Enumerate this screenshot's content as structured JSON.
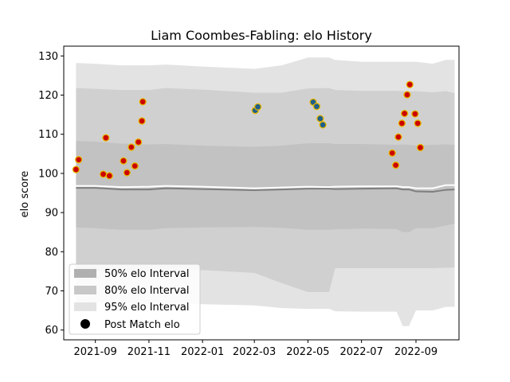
{
  "chart_data": {
    "type": "scatter",
    "title": "Liam Coombes-Fabling: elo History",
    "xlabel": "",
    "ylabel": "elo score",
    "xlim": [
      "2021-07-27",
      "2022-10-20"
    ],
    "ylim": [
      57.5,
      132.5
    ],
    "x_ticks": [
      "2021-09",
      "2021-11",
      "2022-01",
      "2022-03",
      "2022-05",
      "2022-07",
      "2022-09"
    ],
    "x_tick_dates": [
      "2021-09-01",
      "2021-11-01",
      "2022-01-01",
      "2022-03-01",
      "2022-05-01",
      "2022-07-01",
      "2022-09-01"
    ],
    "y_ticks": [
      60,
      70,
      80,
      90,
      100,
      110,
      120,
      130
    ],
    "grid": false,
    "legend_position": "lower left",
    "legend": [
      {
        "label": "50% elo Interval",
        "color": "#b0b0b0"
      },
      {
        "label": "80% elo Interval",
        "color": "#c8c8c8"
      },
      {
        "label": "95% elo Interval",
        "color": "#e3e3e3"
      },
      {
        "label": "Post Match elo",
        "color": "#000000"
      }
    ],
    "bands": {
      "dates": [
        "2021-08-10",
        "2021-09-01",
        "2021-10-01",
        "2021-11-01",
        "2021-11-20",
        "2022-01-01",
        "2022-03-01",
        "2022-04-01",
        "2022-05-01",
        "2022-05-25",
        "2022-06-01",
        "2022-07-01",
        "2022-08-10",
        "2022-08-17",
        "2022-08-24",
        "2022-09-01",
        "2022-09-20",
        "2022-10-05",
        "2022-10-15"
      ],
      "p95_upper": [
        128.2,
        128.0,
        127.6,
        127.6,
        127.8,
        127.3,
        126.7,
        127.6,
        129.6,
        129.6,
        129.0,
        128.5,
        128.5,
        128.5,
        128.5,
        128.5,
        128.0,
        129.0,
        129.0
      ],
      "p80_upper": [
        121.8,
        121.6,
        121.3,
        121.3,
        121.8,
        121.4,
        120.6,
        120.6,
        121.7,
        121.8,
        121.3,
        121.1,
        121.1,
        121.0,
        121.0,
        121.0,
        120.7,
        121.0,
        120.5
      ],
      "p50_upper": [
        108.3,
        108.1,
        107.6,
        107.4,
        107.5,
        107.1,
        106.8,
        107.1,
        107.7,
        107.7,
        107.5,
        107.5,
        107.3,
        107.4,
        107.3,
        107.1,
        107.3,
        107.4,
        107.3
      ],
      "mean_white": [
        96.8,
        96.8,
        96.5,
        96.6,
        96.8,
        96.6,
        96.2,
        96.4,
        96.6,
        96.5,
        96.6,
        96.7,
        96.7,
        96.5,
        96.5,
        96.2,
        96.2,
        97.0,
        97.0
      ],
      "mean_gray": [
        96.3,
        96.3,
        95.9,
        95.9,
        96.2,
        96.0,
        95.7,
        95.9,
        96.1,
        96.1,
        96.0,
        96.1,
        96.2,
        95.9,
        95.9,
        95.4,
        95.3,
        95.8,
        95.9
      ],
      "p50_lower": [
        95.3,
        95.1,
        94.9,
        94.8,
        95.0,
        94.9,
        94.7,
        94.7,
        94.8,
        94.9,
        95.0,
        95.0,
        94.9,
        94.9,
        94.9,
        94.8,
        94.8,
        94.9,
        94.9
      ],
      "p80_lower": [
        86.2,
        86.0,
        85.6,
        85.6,
        86.0,
        86.2,
        86.3,
        86.1,
        85.6,
        85.6,
        85.7,
        85.9,
        85.8,
        85.0,
        85.0,
        86.0,
        86.0,
        86.7,
        87.2
      ],
      "p95_lower": [
        75.5,
        75.0,
        75.0,
        75.0,
        75.4,
        75.3,
        74.6,
        72.0,
        69.7,
        69.7,
        75.8,
        75.8,
        75.8,
        75.8,
        75.8,
        75.8,
        75.8,
        75.9,
        76.0
      ],
      "p99_lower": [
        67.1,
        67.0,
        66.8,
        66.8,
        66.9,
        66.6,
        66.3,
        65.6,
        65.4,
        65.4,
        64.8,
        64.7,
        64.7,
        61.0,
        61.0,
        65.0,
        65.0,
        65.9,
        65.9
      ]
    },
    "series": [
      {
        "name": "Post Match elo",
        "points": [
          {
            "x": "2021-08-10",
            "y": 101.0,
            "fill": "#cc0000"
          },
          {
            "x": "2021-08-13",
            "y": 103.5,
            "fill": "#cc0000"
          },
          {
            "x": "2021-09-10",
            "y": 99.8,
            "fill": "#cc0000"
          },
          {
            "x": "2021-09-13",
            "y": 109.1,
            "fill": "#cc0000"
          },
          {
            "x": "2021-09-17",
            "y": 99.4,
            "fill": "#cc0000"
          },
          {
            "x": "2021-10-03",
            "y": 103.2,
            "fill": "#cc0000"
          },
          {
            "x": "2021-10-07",
            "y": 100.2,
            "fill": "#cc0000"
          },
          {
            "x": "2021-10-12",
            "y": 106.7,
            "fill": "#cc0000"
          },
          {
            "x": "2021-10-16",
            "y": 101.9,
            "fill": "#cc0000"
          },
          {
            "x": "2021-10-20",
            "y": 108.0,
            "fill": "#cc0000"
          },
          {
            "x": "2021-10-24",
            "y": 113.4,
            "fill": "#cc0000"
          },
          {
            "x": "2021-10-25",
            "y": 118.3,
            "fill": "#cc0000"
          },
          {
            "x": "2022-03-02",
            "y": 116.1,
            "fill": "#1f5f8b"
          },
          {
            "x": "2022-03-05",
            "y": 117.0,
            "fill": "#1f5f8b"
          },
          {
            "x": "2022-05-07",
            "y": 118.2,
            "fill": "#1f5f8b"
          },
          {
            "x": "2022-05-11",
            "y": 117.1,
            "fill": "#1f5f8b"
          },
          {
            "x": "2022-05-15",
            "y": 114.0,
            "fill": "#1f5f8b"
          },
          {
            "x": "2022-05-18",
            "y": 112.4,
            "fill": "#1f5f8b"
          },
          {
            "x": "2022-08-05",
            "y": 105.2,
            "fill": "#cc0000"
          },
          {
            "x": "2022-08-09",
            "y": 102.1,
            "fill": "#cc0000"
          },
          {
            "x": "2022-08-12",
            "y": 109.3,
            "fill": "#cc0000"
          },
          {
            "x": "2022-08-16",
            "y": 112.8,
            "fill": "#cc0000"
          },
          {
            "x": "2022-08-19",
            "y": 115.3,
            "fill": "#cc0000"
          },
          {
            "x": "2022-08-22",
            "y": 120.1,
            "fill": "#cc0000"
          },
          {
            "x": "2022-08-25",
            "y": 122.7,
            "fill": "#cc0000"
          },
          {
            "x": "2022-08-31",
            "y": 115.2,
            "fill": "#cc0000"
          },
          {
            "x": "2022-09-03",
            "y": 112.8,
            "fill": "#cc0000"
          },
          {
            "x": "2022-09-06",
            "y": 106.6,
            "fill": "#cc0000"
          }
        ]
      }
    ]
  }
}
